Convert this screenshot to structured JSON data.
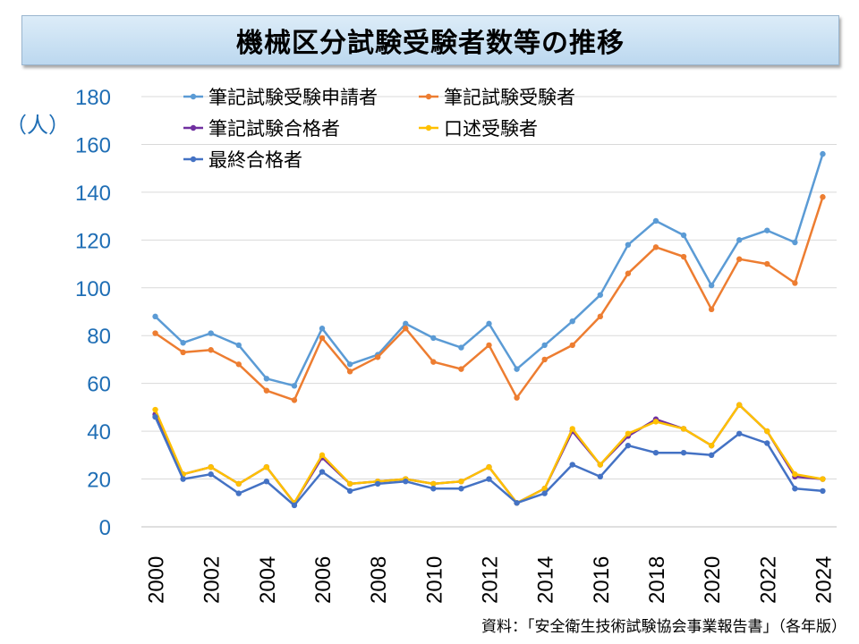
{
  "chart_data": {
    "type": "line",
    "title": "機械区分試験受験者数等の推移",
    "ylabel": "（人）",
    "xlabel": "",
    "ylim": [
      0,
      180
    ],
    "y_ticks": [
      0,
      20,
      40,
      60,
      80,
      100,
      120,
      140,
      160,
      180
    ],
    "x": [
      2000,
      2001,
      2002,
      2003,
      2004,
      2005,
      2006,
      2007,
      2008,
      2009,
      2010,
      2011,
      2012,
      2013,
      2014,
      2015,
      2016,
      2017,
      2018,
      2019,
      2020,
      2021,
      2022,
      2023,
      2024
    ],
    "x_tick_labels": [
      "2000",
      "2002",
      "2004",
      "2006",
      "2008",
      "2010",
      "2012",
      "2014",
      "2016",
      "2018",
      "2020",
      "2022",
      "2024"
    ],
    "grid": true,
    "legend_position": "top-left",
    "series": [
      {
        "name": "筆記試験受験申請者",
        "color": "#5b9bd5",
        "values": [
          88,
          77,
          81,
          76,
          62,
          59,
          83,
          68,
          72,
          85,
          79,
          75,
          85,
          66,
          76,
          86,
          97,
          118,
          128,
          122,
          101,
          120,
          124,
          119,
          156
        ]
      },
      {
        "name": "筆記試験受験者",
        "color": "#ed7d31",
        "values": [
          81,
          73,
          74,
          68,
          57,
          53,
          79,
          65,
          71,
          83,
          69,
          66,
          76,
          54,
          70,
          76,
          88,
          106,
          117,
          113,
          91,
          112,
          110,
          102,
          138
        ]
      },
      {
        "name": "筆記試験合格者",
        "color": "#7030a0",
        "values": [
          47,
          22,
          25,
          18,
          25,
          10,
          29,
          18,
          19,
          20,
          18,
          19,
          25,
          10,
          16,
          40,
          26,
          38,
          45,
          41,
          34,
          51,
          40,
          21,
          20
        ]
      },
      {
        "name": "口述受験者",
        "color": "#ffc000",
        "values": [
          49,
          22,
          25,
          18,
          25,
          10,
          30,
          18,
          19,
          20,
          18,
          19,
          25,
          10,
          16,
          41,
          26,
          39,
          44,
          41,
          34,
          51,
          40,
          22,
          20
        ]
      },
      {
        "name": "最終合格者",
        "color": "#4472c4",
        "values": [
          46,
          20,
          22,
          14,
          19,
          9,
          23,
          15,
          18,
          19,
          16,
          16,
          20,
          10,
          14,
          26,
          21,
          34,
          31,
          31,
          30,
          39,
          35,
          16,
          15
        ]
      }
    ],
    "source": "資料：「安全衛生技術試験協会事業報告書」（各年版）"
  },
  "colors": {
    "axis_text": "#1f6eb5",
    "grid": "#d9d9d9"
  }
}
